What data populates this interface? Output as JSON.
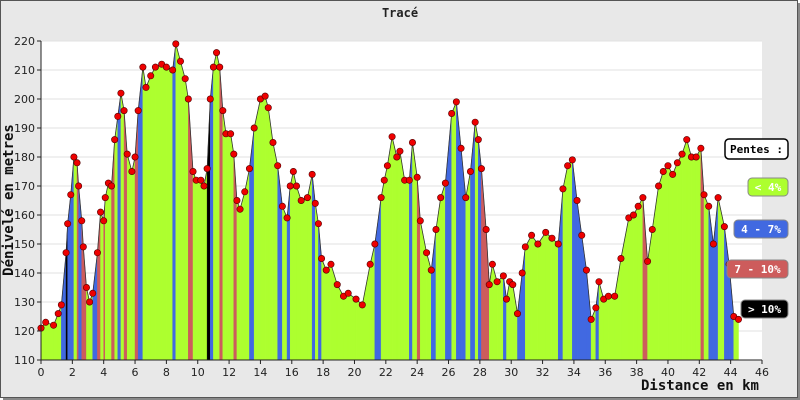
{
  "chart_data": {
    "type": "area",
    "title": "Tracé",
    "xlabel": "Distance en km",
    "ylabel": "Dénivelé en metres",
    "xlim": [
      0,
      46
    ],
    "ylim": [
      110,
      220
    ],
    "x_ticks": [
      "0",
      "2",
      "4",
      "6",
      "8",
      "10",
      "12",
      "14",
      "16",
      "18",
      "20",
      "22",
      "24",
      "26",
      "28",
      "30",
      "32",
      "34",
      "36",
      "38",
      "40",
      "42",
      "44",
      "46"
    ],
    "y_ticks": [
      "110",
      "120",
      "130",
      "140",
      "150",
      "160",
      "170",
      "180",
      "190",
      "200",
      "210",
      "220"
    ],
    "grid": true,
    "legend_title": "Pentes :",
    "legend_position": "right",
    "legend": [
      {
        "label": "< 4%",
        "color": "#adff2f",
        "text_color": "#ffffff"
      },
      {
        "label": "4 - 7%",
        "color": "#4169e1",
        "text_color": "#ffffff"
      },
      {
        "label": "7 - 10%",
        "color": "#cd5c5c",
        "text_color": "#ffffff"
      },
      {
        "label": "> 10%",
        "color": "#000000",
        "text_color": "#ffffff"
      }
    ],
    "profile": [
      [
        0.0,
        121
      ],
      [
        0.3,
        123
      ],
      [
        0.8,
        122
      ],
      [
        1.1,
        126
      ],
      [
        1.3,
        129
      ],
      [
        1.6,
        147
      ],
      [
        1.7,
        157
      ],
      [
        1.9,
        167
      ],
      [
        2.1,
        180
      ],
      [
        2.3,
        178
      ],
      [
        2.4,
        170
      ],
      [
        2.6,
        158
      ],
      [
        2.7,
        149
      ],
      [
        2.9,
        135
      ],
      [
        3.1,
        130
      ],
      [
        3.3,
        133
      ],
      [
        3.6,
        147
      ],
      [
        3.8,
        161
      ],
      [
        4.0,
        158
      ],
      [
        4.1,
        166
      ],
      [
        4.3,
        171
      ],
      [
        4.5,
        170
      ],
      [
        4.7,
        186
      ],
      [
        4.9,
        194
      ],
      [
        5.1,
        202
      ],
      [
        5.3,
        196
      ],
      [
        5.5,
        181
      ],
      [
        5.8,
        175
      ],
      [
        6.0,
        180
      ],
      [
        6.2,
        196
      ],
      [
        6.5,
        211
      ],
      [
        6.7,
        204
      ],
      [
        7.0,
        208
      ],
      [
        7.3,
        211
      ],
      [
        7.7,
        212
      ],
      [
        8.0,
        211
      ],
      [
        8.4,
        210
      ],
      [
        8.6,
        219
      ],
      [
        8.9,
        213
      ],
      [
        9.2,
        207
      ],
      [
        9.4,
        200
      ],
      [
        9.7,
        175
      ],
      [
        9.9,
        172
      ],
      [
        10.2,
        172
      ],
      [
        10.4,
        170
      ],
      [
        10.6,
        176
      ],
      [
        10.8,
        200
      ],
      [
        11.0,
        211
      ],
      [
        11.2,
        216
      ],
      [
        11.4,
        211
      ],
      [
        11.6,
        196
      ],
      [
        11.8,
        188
      ],
      [
        12.1,
        188
      ],
      [
        12.3,
        181
      ],
      [
        12.5,
        165
      ],
      [
        12.7,
        162
      ],
      [
        13.0,
        168
      ],
      [
        13.3,
        176
      ],
      [
        13.6,
        190
      ],
      [
        14.0,
        200
      ],
      [
        14.3,
        201
      ],
      [
        14.5,
        197
      ],
      [
        14.8,
        185
      ],
      [
        15.1,
        177
      ],
      [
        15.4,
        163
      ],
      [
        15.7,
        159
      ],
      [
        15.9,
        170
      ],
      [
        16.1,
        175
      ],
      [
        16.3,
        170
      ],
      [
        16.6,
        165
      ],
      [
        17.0,
        166
      ],
      [
        17.3,
        174
      ],
      [
        17.5,
        164
      ],
      [
        17.7,
        157
      ],
      [
        17.9,
        145
      ],
      [
        18.2,
        141
      ],
      [
        18.5,
        143
      ],
      [
        18.9,
        136
      ],
      [
        19.3,
        132
      ],
      [
        19.6,
        133
      ],
      [
        20.1,
        131
      ],
      [
        20.5,
        129
      ],
      [
        21.0,
        143
      ],
      [
        21.3,
        150
      ],
      [
        21.7,
        166
      ],
      [
        21.9,
        172
      ],
      [
        22.1,
        177
      ],
      [
        22.4,
        187
      ],
      [
        22.7,
        180
      ],
      [
        22.9,
        182
      ],
      [
        23.2,
        172
      ],
      [
        23.5,
        172
      ],
      [
        23.7,
        185
      ],
      [
        24.0,
        173
      ],
      [
        24.2,
        158
      ],
      [
        24.6,
        147
      ],
      [
        24.9,
        141
      ],
      [
        25.2,
        155
      ],
      [
        25.5,
        166
      ],
      [
        25.8,
        171
      ],
      [
        26.2,
        195
      ],
      [
        26.5,
        199
      ],
      [
        26.8,
        183
      ],
      [
        27.1,
        166
      ],
      [
        27.4,
        175
      ],
      [
        27.7,
        192
      ],
      [
        27.9,
        186
      ],
      [
        28.1,
        176
      ],
      [
        28.4,
        155
      ],
      [
        28.6,
        136
      ],
      [
        28.8,
        143
      ],
      [
        29.1,
        137
      ],
      [
        29.5,
        139
      ],
      [
        29.7,
        131
      ],
      [
        29.9,
        137
      ],
      [
        30.1,
        136
      ],
      [
        30.4,
        126
      ],
      [
        30.7,
        140
      ],
      [
        30.9,
        149
      ],
      [
        31.3,
        153
      ],
      [
        31.7,
        150
      ],
      [
        32.2,
        154
      ],
      [
        32.6,
        152
      ],
      [
        33.0,
        150
      ],
      [
        33.3,
        169
      ],
      [
        33.6,
        177
      ],
      [
        33.9,
        179
      ],
      [
        34.2,
        165
      ],
      [
        34.5,
        153
      ],
      [
        34.8,
        141
      ],
      [
        35.1,
        124
      ],
      [
        35.4,
        128
      ],
      [
        35.6,
        137
      ],
      [
        35.9,
        131
      ],
      [
        36.2,
        132
      ],
      [
        36.6,
        132
      ],
      [
        37.0,
        145
      ],
      [
        37.5,
        159
      ],
      [
        37.8,
        160
      ],
      [
        38.1,
        163
      ],
      [
        38.4,
        166
      ],
      [
        38.7,
        144
      ],
      [
        39.0,
        155
      ],
      [
        39.4,
        170
      ],
      [
        39.7,
        175
      ],
      [
        40.0,
        177
      ],
      [
        40.3,
        174
      ],
      [
        40.6,
        178
      ],
      [
        40.9,
        181
      ],
      [
        41.2,
        186
      ],
      [
        41.5,
        180
      ],
      [
        41.8,
        180
      ],
      [
        42.1,
        183
      ],
      [
        42.3,
        167
      ],
      [
        42.6,
        163
      ],
      [
        42.9,
        150
      ],
      [
        43.2,
        166
      ],
      [
        43.6,
        156
      ],
      [
        43.9,
        143
      ],
      [
        44.2,
        125
      ],
      [
        44.5,
        124
      ]
    ]
  }
}
